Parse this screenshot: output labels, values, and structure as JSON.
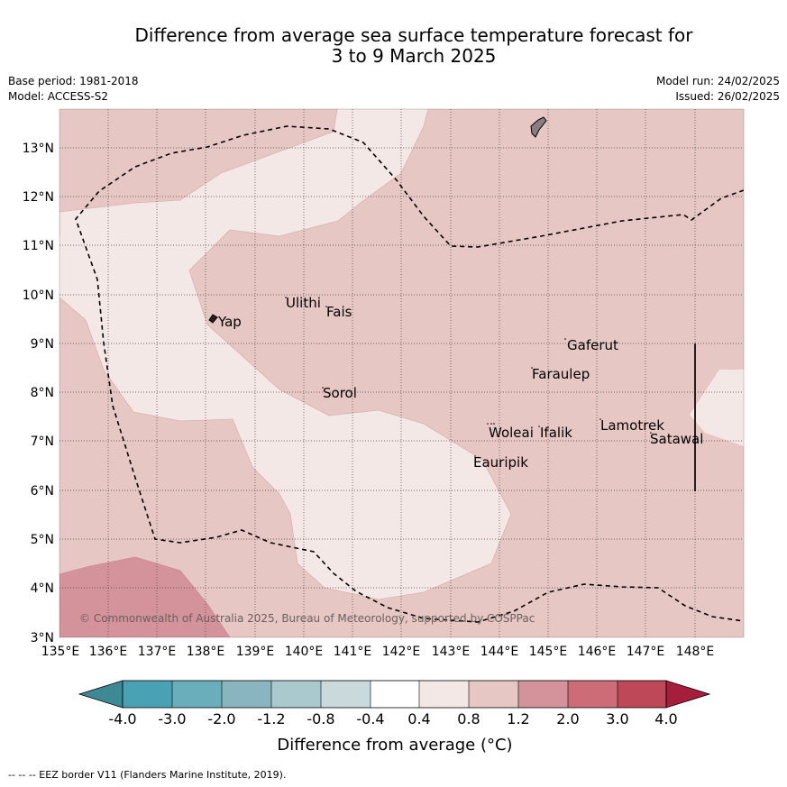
{
  "title": {
    "line1": "Difference from average sea surface temperature forecast for",
    "line2": "3 to 9 March 2025"
  },
  "meta": {
    "base_period": "Base period: 1981-2018",
    "model": "Model: ACCESS-S2",
    "model_run": "Model run: 24/02/2025",
    "issued": "Issued: 26/02/2025"
  },
  "map": {
    "lat_labels": [
      "13°N",
      "12°N",
      "11°N",
      "10°N",
      "9°N",
      "8°N",
      "7°N",
      "6°N",
      "5°N",
      "4°N",
      "3°N"
    ],
    "lon_labels": [
      "135°E",
      "136°E",
      "137°E",
      "138°E",
      "139°E",
      "140°E",
      "141°E",
      "142°E",
      "143°E",
      "144°E",
      "145°E",
      "146°E",
      "147°E",
      "148°E"
    ],
    "places": [
      {
        "name": "Yap"
      },
      {
        "name": "Ulithi"
      },
      {
        "name": "Fais"
      },
      {
        "name": "Sorol"
      },
      {
        "name": "Gaferut"
      },
      {
        "name": "Faraulep"
      },
      {
        "name": "Woleai"
      },
      {
        "name": "Ifalik"
      },
      {
        "name": "Lamotrek"
      },
      {
        "name": "Satawal"
      },
      {
        "name": "Eauripik"
      }
    ],
    "copyright": "© Commonwealth of Australia 2025, Bureau of Meteorology, supported by COSPPac",
    "colors": {
      "land": "#8a7e80",
      "ocean_0.4_0.8": "#f4e8e7",
      "ocean_0.8_1.2": "#e7c7c3",
      "ocean_1.2_2.0": "#d4929a",
      "eez": "#000000"
    }
  },
  "colorbar": {
    "ticks": [
      "-4.0",
      "-3.0",
      "-2.0",
      "-1.2",
      "-0.8",
      "-0.4",
      "0.4",
      "0.8",
      "1.2",
      "2.0",
      "3.0",
      "4.0"
    ],
    "colors": [
      "#3d8a96",
      "#48a2b3",
      "#6aaebb",
      "#89b5c0",
      "#aac9cf",
      "#c9d9dc",
      "#ffffff",
      "#f4e8e7",
      "#e7c7c3",
      "#d4929a",
      "#cd6b76",
      "#be4758",
      "#a51f3c"
    ],
    "label": "Difference from average (°C)"
  },
  "footer": "--  --  -- EEZ border V11 (Flanders Marine Institute, 2019)."
}
